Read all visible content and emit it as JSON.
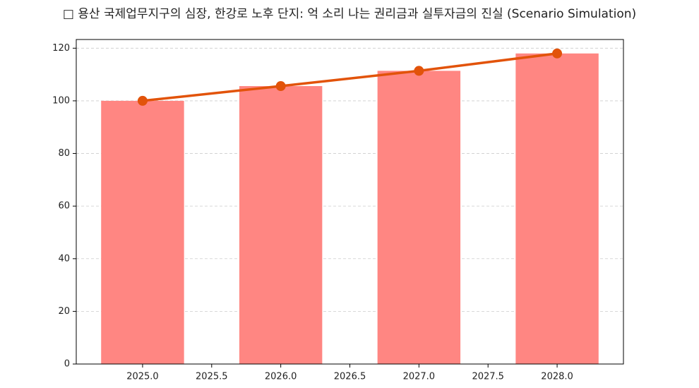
{
  "chart_data": {
    "type": "combo",
    "title": "□ 용산 국제업무지구의 심장, 한강로 노후 단지: 억 소리 나는 권리금과 실투자금의 진실 (Scenario Simulation)",
    "x": [
      2025,
      2026,
      2027,
      2028
    ],
    "series": [
      {
        "type": "bar",
        "color": "#ff8682",
        "values": [
          100,
          105.6,
          111.4,
          118
        ]
      },
      {
        "type": "line",
        "color": "#e2530a",
        "values": [
          100,
          105.6,
          111.4,
          118
        ]
      }
    ],
    "xlim": [
      2024.52,
      2028.48
    ],
    "xticks": [
      {
        "value": 2025,
        "label": "2025.0"
      },
      2025.5,
      {
        "value": 2026,
        "label": "2026.0"
      },
      2026.5,
      {
        "value": 2027,
        "label": "2027.0"
      },
      2027.5,
      {
        "value": 2028,
        "label": "2028.0"
      }
    ],
    "ylim": [
      0,
      123.3
    ],
    "yticks": [
      0,
      20,
      40,
      60,
      80,
      100,
      120
    ],
    "grid": true
  }
}
